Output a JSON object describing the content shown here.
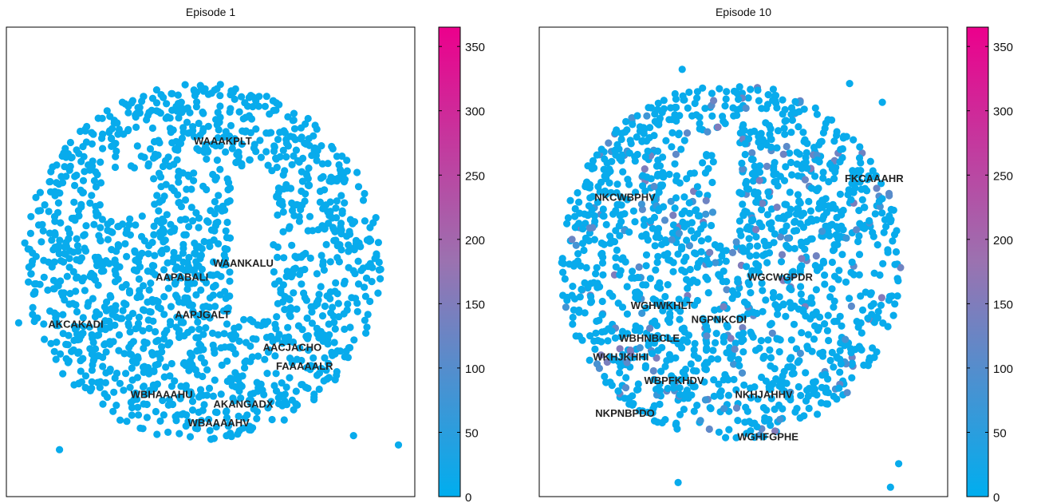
{
  "chart_data": [
    {
      "type": "scatter",
      "title": "Episode 1",
      "xlabel": "",
      "ylabel": "",
      "colorbar": {
        "min": 0,
        "max": 365,
        "ticks": [
          "0",
          "50",
          "100",
          "150",
          "200",
          "250",
          "300",
          "350"
        ],
        "colors": [
          "#00aeef",
          "#9b72b0",
          "#ec008c"
        ]
      },
      "point_color_value": 10,
      "grid": false,
      "annotations": [
        {
          "text": "WAAAKPLT",
          "x": 0.53,
          "y": 0.75
        },
        {
          "text": "WAANKALU",
          "x": 0.58,
          "y": 0.49
        },
        {
          "text": "AAPABALI",
          "x": 0.43,
          "y": 0.46
        },
        {
          "text": "AAPJGALT",
          "x": 0.48,
          "y": 0.38
        },
        {
          "text": "AKCAKADI",
          "x": 0.17,
          "y": 0.36
        },
        {
          "text": "AACJACHO",
          "x": 0.7,
          "y": 0.31
        },
        {
          "text": "FAAAAALR",
          "x": 0.73,
          "y": 0.27
        },
        {
          "text": "WBHAAAHU",
          "x": 0.38,
          "y": 0.21
        },
        {
          "text": "AKANGADX",
          "x": 0.58,
          "y": 0.19
        },
        {
          "text": "WBAAAAHV",
          "x": 0.52,
          "y": 0.15
        }
      ],
      "outliers": [
        {
          "x": 0.03,
          "y": 0.37
        },
        {
          "x": 0.13,
          "y": 0.1
        },
        {
          "x": 0.85,
          "y": 0.13
        },
        {
          "x": 0.96,
          "y": 0.11
        }
      ]
    },
    {
      "type": "scatter",
      "title": "Episode 10",
      "xlabel": "",
      "ylabel": "",
      "colorbar": {
        "min": 0,
        "max": 365,
        "ticks": [
          "0",
          "50",
          "100",
          "150",
          "200",
          "250",
          "300",
          "350"
        ],
        "colors": [
          "#00aeef",
          "#9b72b0",
          "#ec008c"
        ]
      },
      "point_color_value": 10,
      "grid": false,
      "annotations": [
        {
          "text": "FKCAAAHR",
          "x": 0.82,
          "y": 0.67
        },
        {
          "text": "NKCWBPHV",
          "x": 0.21,
          "y": 0.63
        },
        {
          "text": "WGCWGPDR",
          "x": 0.59,
          "y": 0.46
        },
        {
          "text": "WGHWKHLT",
          "x": 0.3,
          "y": 0.4
        },
        {
          "text": "NGPNKCDI",
          "x": 0.44,
          "y": 0.37
        },
        {
          "text": "WBHNBCLE",
          "x": 0.27,
          "y": 0.33
        },
        {
          "text": "WKHJKHHI",
          "x": 0.2,
          "y": 0.29
        },
        {
          "text": "WBPFKHDV",
          "x": 0.33,
          "y": 0.24
        },
        {
          "text": "NKHJAHHV",
          "x": 0.55,
          "y": 0.21
        },
        {
          "text": "NKPNBPDO",
          "x": 0.21,
          "y": 0.17
        },
        {
          "text": "WGHFGPHE",
          "x": 0.56,
          "y": 0.12
        }
      ],
      "outliers": [
        {
          "x": 0.35,
          "y": 0.91
        },
        {
          "x": 0.76,
          "y": 0.88
        },
        {
          "x": 0.84,
          "y": 0.84
        },
        {
          "x": 0.88,
          "y": 0.07
        },
        {
          "x": 0.34,
          "y": 0.03
        },
        {
          "x": 0.86,
          "y": 0.02
        }
      ]
    }
  ]
}
